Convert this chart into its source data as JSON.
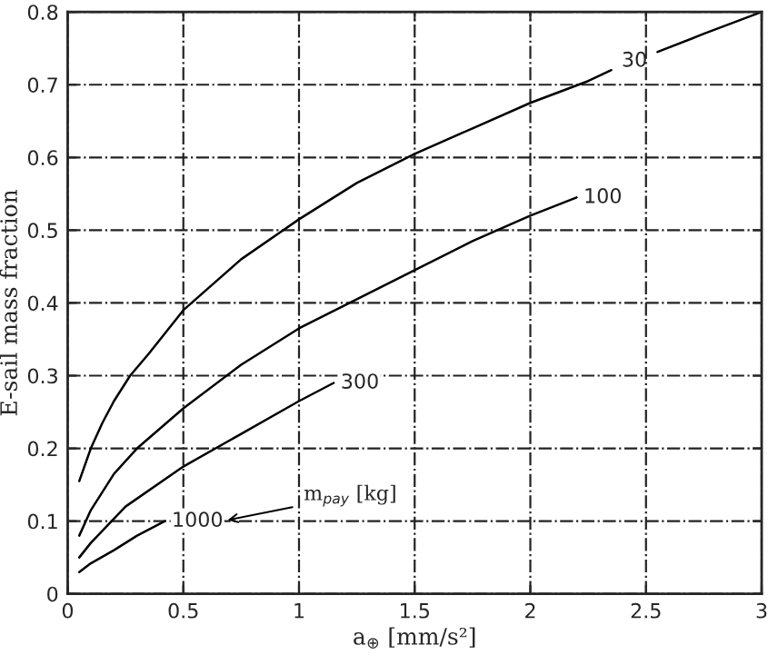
{
  "chart_data": {
    "type": "line",
    "xlabel": "a$_{⊕}$ [mm/s²]",
    "ylabel": "E-sail mass fraction",
    "xlim": [
      0,
      3
    ],
    "ylim": [
      0,
      0.8
    ],
    "xticks": [
      0,
      0.5,
      1,
      1.5,
      2,
      2.5,
      3
    ],
    "yticks": [
      0,
      0.1,
      0.2,
      0.3,
      0.4,
      0.5,
      0.6,
      0.7,
      0.8
    ],
    "grid": true,
    "line_style": "solid",
    "marker": "none",
    "series": [
      {
        "name": "30",
        "color": "#000000",
        "x": [
          0.05,
          0.1,
          0.15,
          0.2,
          0.27,
          0.35,
          0.5,
          0.75,
          1.0,
          1.25,
          1.5,
          1.75,
          2.0,
          2.25,
          2.35,
          2.45,
          2.55,
          2.75,
          3.0
        ],
        "values": [
          0.155,
          0.2,
          0.235,
          0.265,
          0.3,
          0.33,
          0.39,
          0.46,
          0.515,
          0.565,
          0.605,
          0.64,
          0.675,
          0.705,
          0.72,
          null,
          0.745,
          0.77,
          0.8
        ]
      },
      {
        "name": "100",
        "color": "#000000",
        "x": [
          0.05,
          0.1,
          0.2,
          0.3,
          0.5,
          0.75,
          1.0,
          1.25,
          1.5,
          1.75,
          2.0,
          2.2
        ],
        "values": [
          0.08,
          0.115,
          0.165,
          0.2,
          0.255,
          0.315,
          0.365,
          0.405,
          0.445,
          0.485,
          0.52,
          0.545
        ]
      },
      {
        "name": "300",
        "color": "#000000",
        "x": [
          0.05,
          0.1,
          0.25,
          0.5,
          0.75,
          1.0,
          1.15
        ],
        "values": [
          0.05,
          0.07,
          0.12,
          0.175,
          0.22,
          0.265,
          0.29
        ]
      },
      {
        "name": "1000",
        "color": "#000000",
        "x": [
          0.05,
          0.1,
          0.2,
          0.3,
          0.42
        ],
        "values": [
          0.03,
          0.042,
          0.06,
          0.08,
          0.1
        ]
      }
    ],
    "annotations": [
      "m$_{pay}$ [kg]"
    ]
  }
}
